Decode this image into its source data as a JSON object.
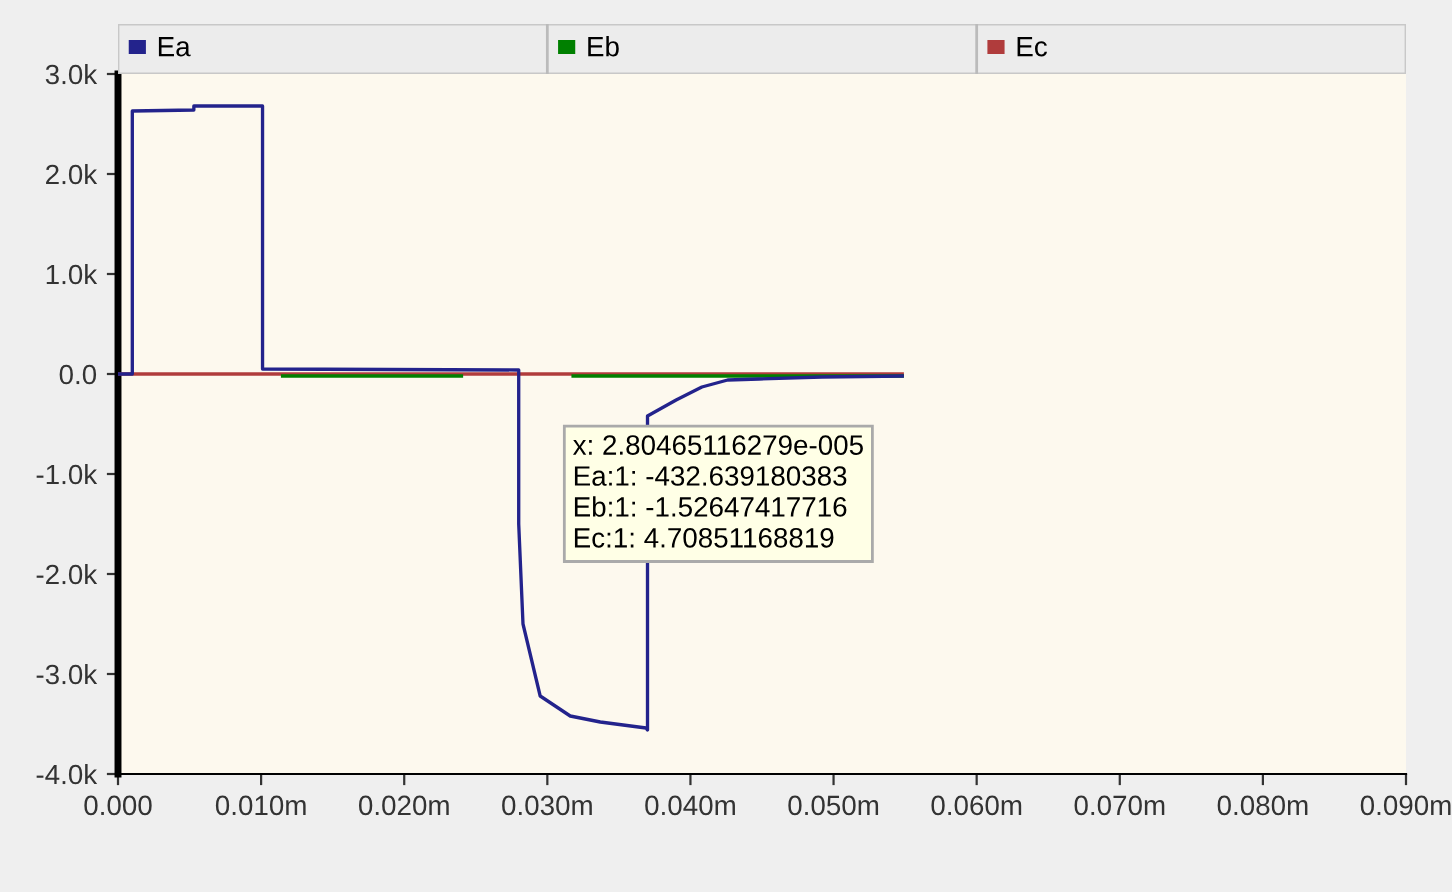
{
  "chart_data": {
    "type": "line",
    "series": [
      {
        "name": "Ea",
        "color": "#23238c",
        "x": [
          0,
          0.001,
          0.001,
          0.0053,
          0.0053,
          0.0101,
          0.0101,
          0.028,
          0.028,
          0.0283,
          0.0295,
          0.0316,
          0.0337,
          0.0369,
          0.037,
          0.037,
          0.039,
          0.0408,
          0.0426,
          0.0448,
          0.0492,
          0.0548
        ],
        "values": [
          0,
          0,
          2630,
          2640,
          2680,
          2680,
          50,
          40,
          -1500,
          -2500,
          -3220,
          -3420,
          -3480,
          -3540,
          -3560,
          -420,
          -260,
          -130,
          -60,
          -50,
          -30,
          -20
        ]
      },
      {
        "name": "Eb",
        "color": "#008000",
        "x": [
          0.0115,
          0.024,
          0.028,
          0.0318,
          0.0548
        ],
        "values": [
          -20,
          -20,
          null,
          -20,
          -20
        ]
      },
      {
        "name": "Ec",
        "color": "#b03c3c",
        "x": [
          0,
          0.0548
        ],
        "values": [
          0,
          0
        ]
      }
    ],
    "xlim": [
      0,
      0.09
    ],
    "xticks": [
      {
        "value": 0,
        "label": "0.000"
      },
      {
        "value": 0.01,
        "label": "0.010m"
      },
      {
        "value": 0.02,
        "label": "0.020m"
      },
      {
        "value": 0.03,
        "label": "0.030m"
      },
      {
        "value": 0.04,
        "label": "0.040m"
      },
      {
        "value": 0.05,
        "label": "0.050m"
      },
      {
        "value": 0.06,
        "label": "0.060m"
      },
      {
        "value": 0.07,
        "label": "0.070m"
      },
      {
        "value": 0.08,
        "label": "0.080m"
      },
      {
        "value": 0.09,
        "label": "0.090m"
      }
    ],
    "ylim": [
      -4000,
      3000
    ],
    "yticks": [
      {
        "value": -4000,
        "label": "-4.0k"
      },
      {
        "value": -3000,
        "label": "-3.0k"
      },
      {
        "value": -2000,
        "label": "-2.0k"
      },
      {
        "value": -1000,
        "label": "-1.0k"
      },
      {
        "value": 0,
        "label": "0.0"
      },
      {
        "value": 1000,
        "label": "1.0k"
      },
      {
        "value": 2000,
        "label": "2.0k"
      },
      {
        "value": 3000,
        "label": "3.0k"
      }
    ],
    "annotations": [
      "x: 2.80465116279e-005",
      "Ea:1: -432.639180383",
      "Eb:1: -1.52647417716",
      "Ec:1: 4.70851168819"
    ],
    "grid": false,
    "legend": "top",
    "marker": "none",
    "line_style": "solid"
  }
}
